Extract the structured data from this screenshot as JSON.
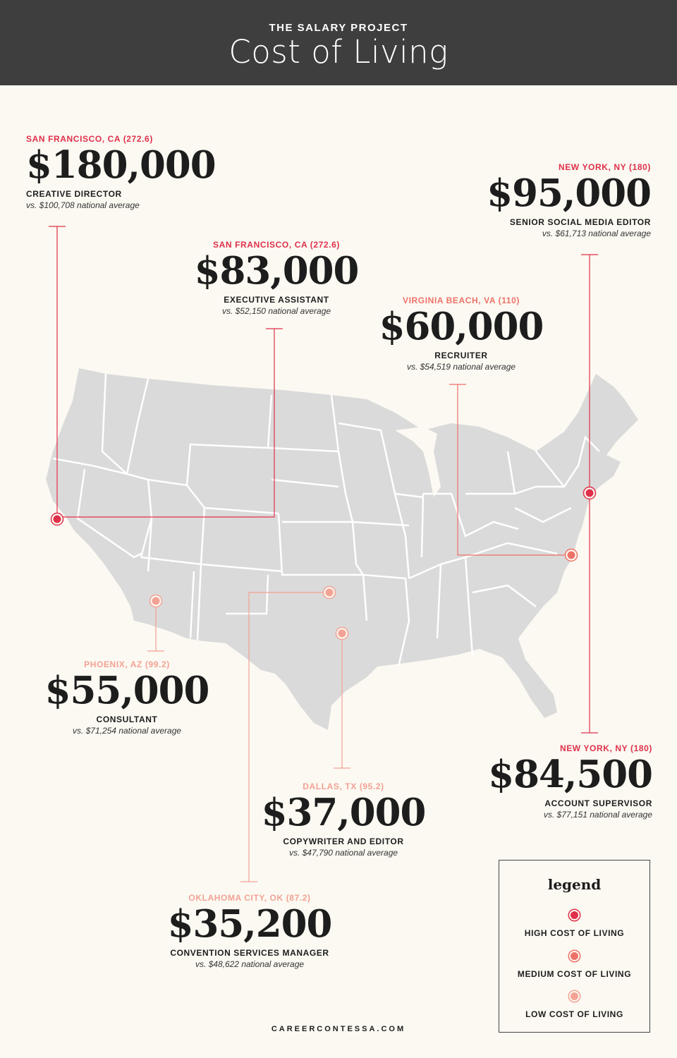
{
  "header": {
    "kicker": "THE SALARY PROJECT",
    "title": "Cost of Living"
  },
  "colors": {
    "high": "#e0304a",
    "medium": "#ee7268",
    "low": "#f3a294",
    "map_fill": "#dadada",
    "map_border": "#ffffff",
    "header_bg": "#3e3e3e",
    "page_bg": "#fbf9f2"
  },
  "callouts": [
    {
      "id": "sf-creative",
      "city": "SAN FRANCISCO, CA (272.6)",
      "salary": "$180,000",
      "role": "CREATIVE DIRECTOR",
      "average": "vs. $100,708 national average",
      "level": "high"
    },
    {
      "id": "sf-exec",
      "city": "SAN FRANCISCO, CA (272.6)",
      "salary": "$83,000",
      "role": "EXECUTIVE ASSISTANT",
      "average": "vs. $52,150 national average",
      "level": "high"
    },
    {
      "id": "va-recruiter",
      "city": "VIRGINIA BEACH, VA (110)",
      "salary": "$60,000",
      "role": "RECRUITER",
      "average": "vs. $54,519 national average",
      "level": "medium"
    },
    {
      "id": "ny-social",
      "city": "NEW YORK, NY (180)",
      "salary": "$95,000",
      "role": "SENIOR SOCIAL MEDIA EDITOR",
      "average": "vs. $61,713 national average",
      "level": "high"
    },
    {
      "id": "phx-consultant",
      "city": "PHOENIX, AZ (99.2)",
      "salary": "$55,000",
      "role": "CONSULTANT",
      "average": "vs. $71,254 national average",
      "level": "low"
    },
    {
      "id": "ny-account",
      "city": "NEW YORK, NY (180)",
      "salary": "$84,500",
      "role": "ACCOUNT SUPERVISOR",
      "average": "vs. $77,151 national average",
      "level": "high"
    },
    {
      "id": "dal-copy",
      "city": "DALLAS, TX (95.2)",
      "salary": "$37,000",
      "role": "COPYWRITER AND EDITOR",
      "average": "vs. $47,790 national average",
      "level": "low"
    },
    {
      "id": "okc-conv",
      "city": "OKLAHOMA CITY, OK (87.2)",
      "salary": "$35,200",
      "role": "CONVENTION SERVICES MANAGER",
      "average": "vs. $48,622 national average",
      "level": "low"
    }
  ],
  "legend": {
    "title": "legend",
    "items": [
      {
        "label": "HIGH COST OF LIVING",
        "level": "high"
      },
      {
        "label": "MEDIUM COST OF LIVING",
        "level": "medium"
      },
      {
        "label": "LOW COST OF LIVING",
        "level": "low"
      }
    ]
  },
  "markers": [
    {
      "city": "San Francisco",
      "level": "high"
    },
    {
      "city": "New York",
      "level": "high"
    },
    {
      "city": "Virginia Beach",
      "level": "medium"
    },
    {
      "city": "Phoenix",
      "level": "low"
    },
    {
      "city": "Oklahoma City",
      "level": "low"
    },
    {
      "city": "Dallas",
      "level": "low"
    }
  ],
  "footer": "CAREERCONTESSA.COM"
}
